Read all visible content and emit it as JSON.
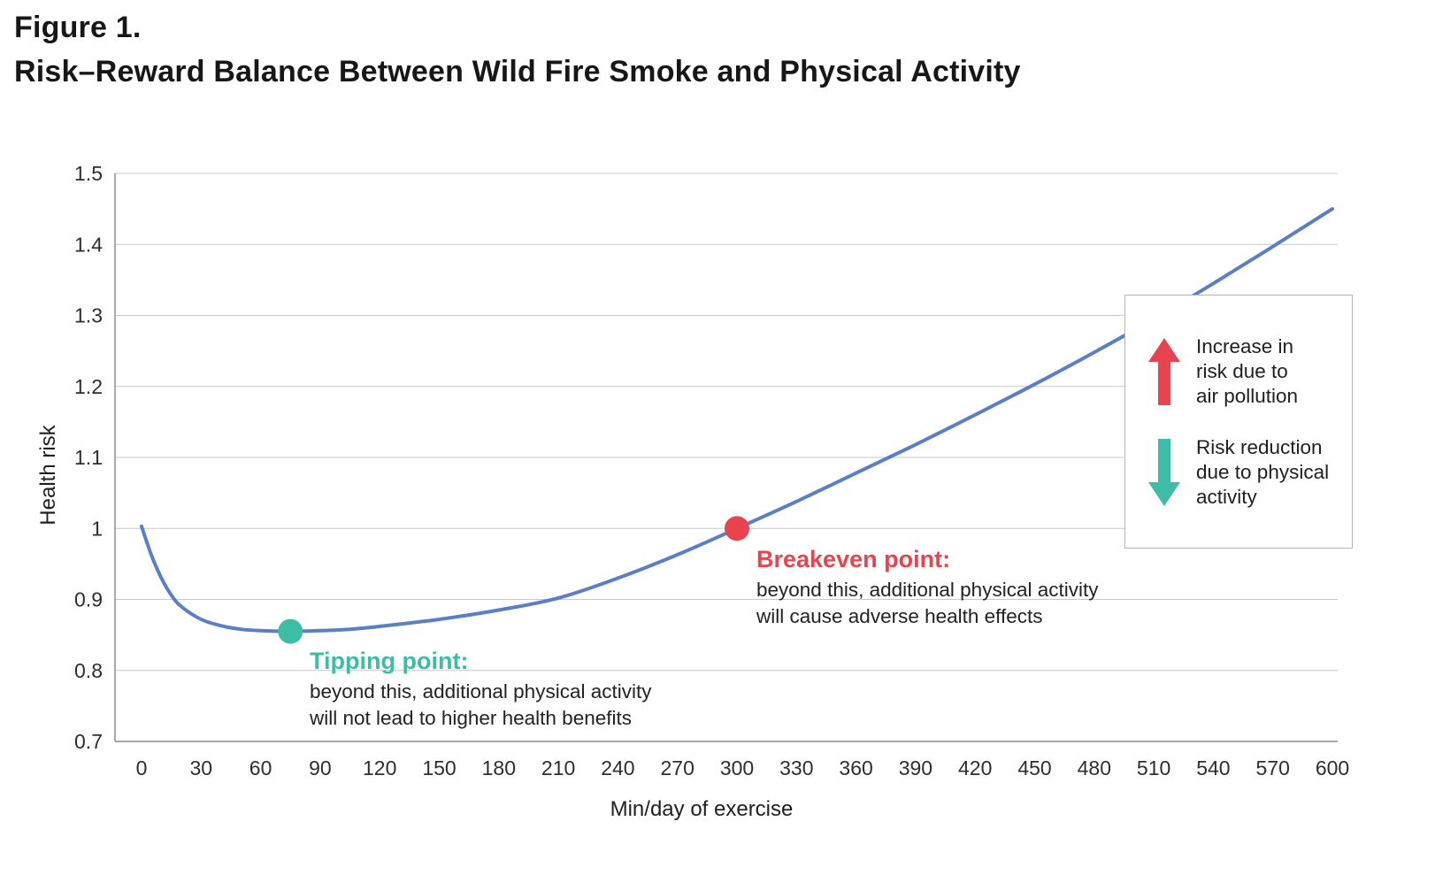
{
  "figure": {
    "label": "Figure 1.",
    "title": "Risk–Reward Balance Between Wild Fire Smoke and Physical Activity"
  },
  "chart_data": {
    "type": "line",
    "title": "Risk–Reward Balance Between Wild Fire Smoke and Physical Activity",
    "xlabel": "Min/day of exercise",
    "ylabel": "Health risk",
    "xlim": [
      0,
      600
    ],
    "ylim": [
      0.7,
      1.5
    ],
    "x_ticks": [
      0,
      30,
      60,
      90,
      120,
      150,
      180,
      210,
      240,
      270,
      300,
      330,
      360,
      390,
      420,
      450,
      480,
      510,
      540,
      570,
      600
    ],
    "y_ticks": [
      "0.7",
      "0.8",
      "0.9",
      "1",
      "1.1",
      "1.2",
      "1.3",
      "1.4",
      "1.5"
    ],
    "grid": "horizontal",
    "legend_position": "upper-right",
    "line_color": "#5b7fc7",
    "grid_color": "#c9c9c9",
    "axis_color": "#9b9b9b",
    "tick_text_color": "#2e2e2e",
    "series": [
      {
        "name": "Health risk vs exercise duration",
        "x": [
          0,
          5,
          10,
          15,
          20,
          30,
          40,
          50,
          60,
          75,
          90,
          105,
          120,
          150,
          180,
          210,
          240,
          270,
          300,
          330,
          360,
          390,
          420,
          450,
          480,
          510,
          540,
          570,
          600
        ],
        "y": [
          1.003,
          0.962,
          0.93,
          0.906,
          0.89,
          0.872,
          0.863,
          0.858,
          0.856,
          0.855,
          0.856,
          0.858,
          0.862,
          0.872,
          0.885,
          0.902,
          0.93,
          0.963,
          1.0,
          1.038,
          1.078,
          1.118,
          1.16,
          1.203,
          1.248,
          1.295,
          1.345,
          1.397,
          1.45
        ]
      }
    ],
    "markers": [
      {
        "name": "tipping-point",
        "x": 75,
        "y": 0.855,
        "color": "#3dbda6"
      },
      {
        "name": "breakeven-point",
        "x": 300,
        "y": 1.0,
        "color": "#e84450"
      }
    ]
  },
  "annotations": {
    "tipping": {
      "title": "Tipping point:",
      "body": "beyond this, additional physical activity\nwill not lead to higher health benefits",
      "color": "#3dbda6"
    },
    "breakeven": {
      "title": "Breakeven point:",
      "body": "beyond this, additional physical activity\nwill cause adverse health effects",
      "color": "#e84450"
    }
  },
  "legend": {
    "items": [
      {
        "icon": "up-arrow",
        "color": "#e84450",
        "label": "Increase in\nrisk due to\nair pollution"
      },
      {
        "icon": "down-arrow",
        "color": "#3dbda6",
        "label": "Risk reduction\ndue to physical\nactivity"
      }
    ]
  }
}
